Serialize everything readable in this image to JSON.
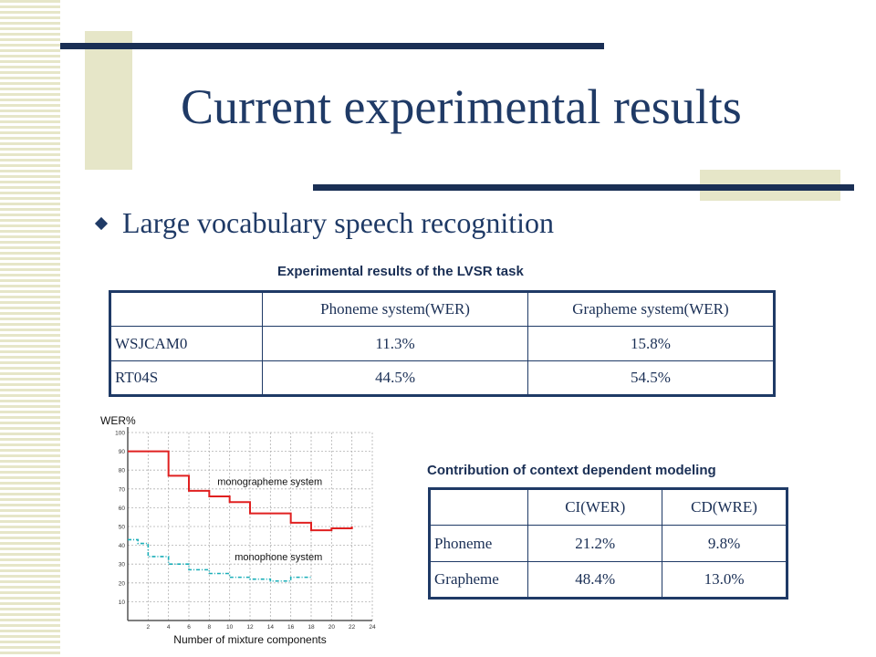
{
  "slide": {
    "title": "Current experimental results",
    "bullet": "Large vocabulary speech recognition"
  },
  "colors": {
    "title": "#1f3a66",
    "accent_bar": "#e6e6c8",
    "rule": "#1a2f55",
    "red_series": "#e02020",
    "cyan_series": "#1aaeb8"
  },
  "lvsr_table": {
    "caption": "Experimental results of the LVSR task",
    "headers": [
      "",
      "Phoneme system(WER)",
      "Grapheme system(WER)"
    ],
    "rows": [
      [
        "WSJCAM0",
        "11.3%",
        "15.8%"
      ],
      [
        "RT04S",
        "44.5%",
        "54.5%"
      ]
    ]
  },
  "cd_table": {
    "caption": "Contribution of context dependent modeling",
    "headers": [
      "",
      "CI(WER)",
      "CD(WRE)"
    ],
    "rows": [
      [
        "Phoneme",
        "21.2%",
        "9.8%"
      ],
      [
        "Grapheme",
        "48.4%",
        "13.0%"
      ]
    ]
  },
  "chart_data": {
    "type": "line",
    "ylabel": "WER%",
    "xlabel": "Number of mixture components",
    "xlim": [
      0,
      24
    ],
    "ylim": [
      0,
      100
    ],
    "xticks": [
      2,
      4,
      6,
      8,
      10,
      12,
      14,
      16,
      18,
      20,
      22,
      24
    ],
    "yticks": [
      10,
      20,
      30,
      40,
      50,
      60,
      70,
      80,
      90,
      100
    ],
    "grid": true,
    "series": [
      {
        "name": "monographeme system",
        "style": "step-solid",
        "color": "#e02020",
        "x": [
          0,
          2,
          4,
          6,
          8,
          10,
          12,
          14,
          16,
          18,
          20,
          22
        ],
        "y": [
          90,
          90,
          77,
          69,
          66,
          63,
          57,
          57,
          52,
          48,
          49,
          50
        ]
      },
      {
        "name": "monophone system",
        "style": "step-dashed",
        "color": "#1aaeb8",
        "x": [
          0,
          1,
          2,
          4,
          6,
          8,
          10,
          12,
          14,
          16,
          18
        ],
        "y": [
          43,
          41,
          34,
          30,
          27,
          25,
          23,
          22,
          21,
          23,
          23
        ]
      }
    ]
  }
}
